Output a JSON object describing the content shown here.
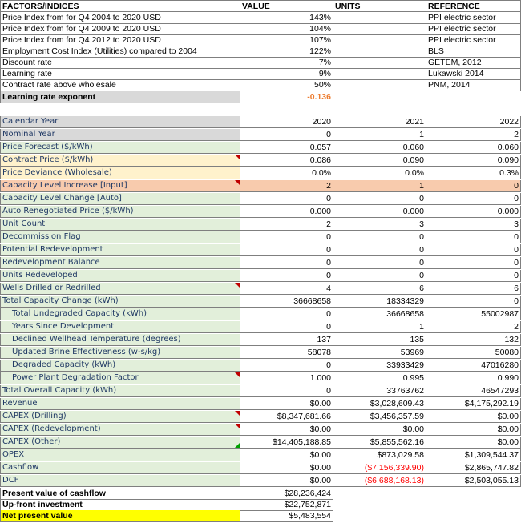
{
  "header": {
    "factors": "FACTORS/INDICES",
    "value": "VALUE",
    "units": "UNITS",
    "reference": "REFERENCE"
  },
  "factors": [
    {
      "label": "Price Index from for Q4 2004 to 2020 USD",
      "value": "143%",
      "reference": "PPI electric sector"
    },
    {
      "label": "Price Index from for Q4 2009 to 2020 USD",
      "value": "104%",
      "reference": "PPI electric sector"
    },
    {
      "label": "Price Index from for Q4 2012 to 2020 USD",
      "value": "107%",
      "reference": "PPI electric sector"
    },
    {
      "label": "Employment Cost Index (Utilities) compared to 2004",
      "value": "122%",
      "reference": "BLS"
    },
    {
      "label": "Discount rate",
      "value": "7%",
      "reference": "GETEM, 2012"
    },
    {
      "label": "Learning rate",
      "value": "9%",
      "reference": "Lukawski 2014"
    },
    {
      "label": "Contract rate above wholesale",
      "value": "50%",
      "reference": "PNM, 2014"
    }
  ],
  "learning_exponent": {
    "label": "Learning rate exponent",
    "value": "-0.136"
  },
  "rows": [
    {
      "label": "Calendar Year",
      "v": [
        "2020",
        "2021",
        "2022"
      ],
      "style": "gray"
    },
    {
      "label": "Nominal Year",
      "v": [
        "0",
        "1",
        "2"
      ],
      "style": "gray"
    },
    {
      "label": "Price Forecast ($/kWh)",
      "v": [
        "0.057",
        "0.060",
        "0.060"
      ],
      "style": "green"
    },
    {
      "label": "Contract Price ($/kWh)",
      "v": [
        "0.086",
        "0.090",
        "0.090"
      ],
      "style": "yellowish"
    },
    {
      "label": "Price Deviance (Wholesale)",
      "v": [
        "0.0%",
        "0.0%",
        "0.3%"
      ],
      "style": "yellowish"
    },
    {
      "label": "Capacity Level Increase [Input]",
      "v": [
        "2",
        "1",
        "0"
      ],
      "style": "orange"
    },
    {
      "label": "Capacity Level Change [Auto]",
      "v": [
        "0",
        "0",
        "0"
      ],
      "style": "green"
    },
    {
      "label": "Auto Renegotiated Price ($/kWh)",
      "v": [
        "0.000",
        "0.000",
        "0.000"
      ],
      "style": "green"
    },
    {
      "label": "Unit Count",
      "v": [
        "2",
        "3",
        "3"
      ],
      "style": "green"
    },
    {
      "label": "Decommission Flag",
      "v": [
        "0",
        "0",
        "0"
      ],
      "style": "green"
    },
    {
      "label": "Potential Redevelopment",
      "v": [
        "0",
        "0",
        "0"
      ],
      "style": "green"
    },
    {
      "label": "Redevelopment Balance",
      "v": [
        "0",
        "0",
        "0"
      ],
      "style": "green"
    },
    {
      "label": "Units Redeveloped",
      "v": [
        "0",
        "0",
        "0"
      ],
      "style": "green"
    },
    {
      "label": "Wells Drilled or Redrilled",
      "v": [
        "4",
        "6",
        "6"
      ],
      "style": "green"
    },
    {
      "label": "Total Capacity Change (kWh)",
      "v": [
        "36668658",
        "18334329",
        "0"
      ],
      "style": "green"
    },
    {
      "label": "Total Undegraded Capacity (kWh)",
      "v": [
        "0",
        "36668658",
        "55002987"
      ],
      "style": "green",
      "indent": true
    },
    {
      "label": "Years Since Development",
      "v": [
        "0",
        "1",
        "2"
      ],
      "style": "green",
      "indent": true
    },
    {
      "label": "Declined Wellhead Temperature (degrees)",
      "v": [
        "137",
        "135",
        "132"
      ],
      "style": "green",
      "indent": true
    },
    {
      "label": "Updated Brine Effectiveness  (w-s/kg)",
      "v": [
        "58078",
        "53969",
        "50080"
      ],
      "style": "green",
      "indent": true
    },
    {
      "label": "Degraded Capacity (kWh)",
      "v": [
        "0",
        "33933429",
        "47016280"
      ],
      "style": "green",
      "indent": true
    },
    {
      "label": "Power Plant Degradation Factor",
      "v": [
        "1.000",
        "0.995",
        "0.990"
      ],
      "style": "green",
      "indent": true
    },
    {
      "label": "Total Overall Capacity (kWh)",
      "v": [
        "0",
        "33763762",
        "46547293"
      ],
      "style": "green"
    },
    {
      "label": "Revenue",
      "v": [
        "$0.00",
        "$3,028,609.43",
        "$4,175,292.19"
      ],
      "style": "green"
    },
    {
      "label": "CAPEX (Drilling)",
      "v": [
        "$8,347,681.66",
        "$3,456,357.59",
        "$0.00"
      ],
      "style": "green"
    },
    {
      "label": "CAPEX (Redevelopment)",
      "v": [
        "$0.00",
        "$0.00",
        "$0.00"
      ],
      "style": "green"
    },
    {
      "label": "CAPEX (Other)",
      "v": [
        "$14,405,188.85",
        "$5,855,562.16",
        "$0.00"
      ],
      "style": "green"
    },
    {
      "label": "OPEX",
      "v": [
        "$0.00",
        "$873,029.58",
        "$1,309,544.37"
      ],
      "style": "green"
    },
    {
      "label": "Cashflow",
      "v": [
        "$0.00",
        "($7,156,339.90)",
        "$2,865,747.82"
      ],
      "style": "green"
    },
    {
      "label": "DCF",
      "v": [
        "$0.00",
        "($6,688,168.13)",
        "$2,503,055.13"
      ],
      "style": "green"
    }
  ],
  "summary": [
    {
      "label": "Present value of cashflow",
      "value": "$28,236,424"
    },
    {
      "label": "Up-front investment",
      "value": "$22,752,871"
    },
    {
      "label": "Net present value",
      "value": "$5,483,554"
    }
  ],
  "colors": {
    "gray": "#d9d9d9",
    "green": "#e2efda",
    "light_yellow": "#fff2cc",
    "orange": "#f8cbad",
    "yellow": "#ffff00",
    "negative": "#ff0000"
  }
}
